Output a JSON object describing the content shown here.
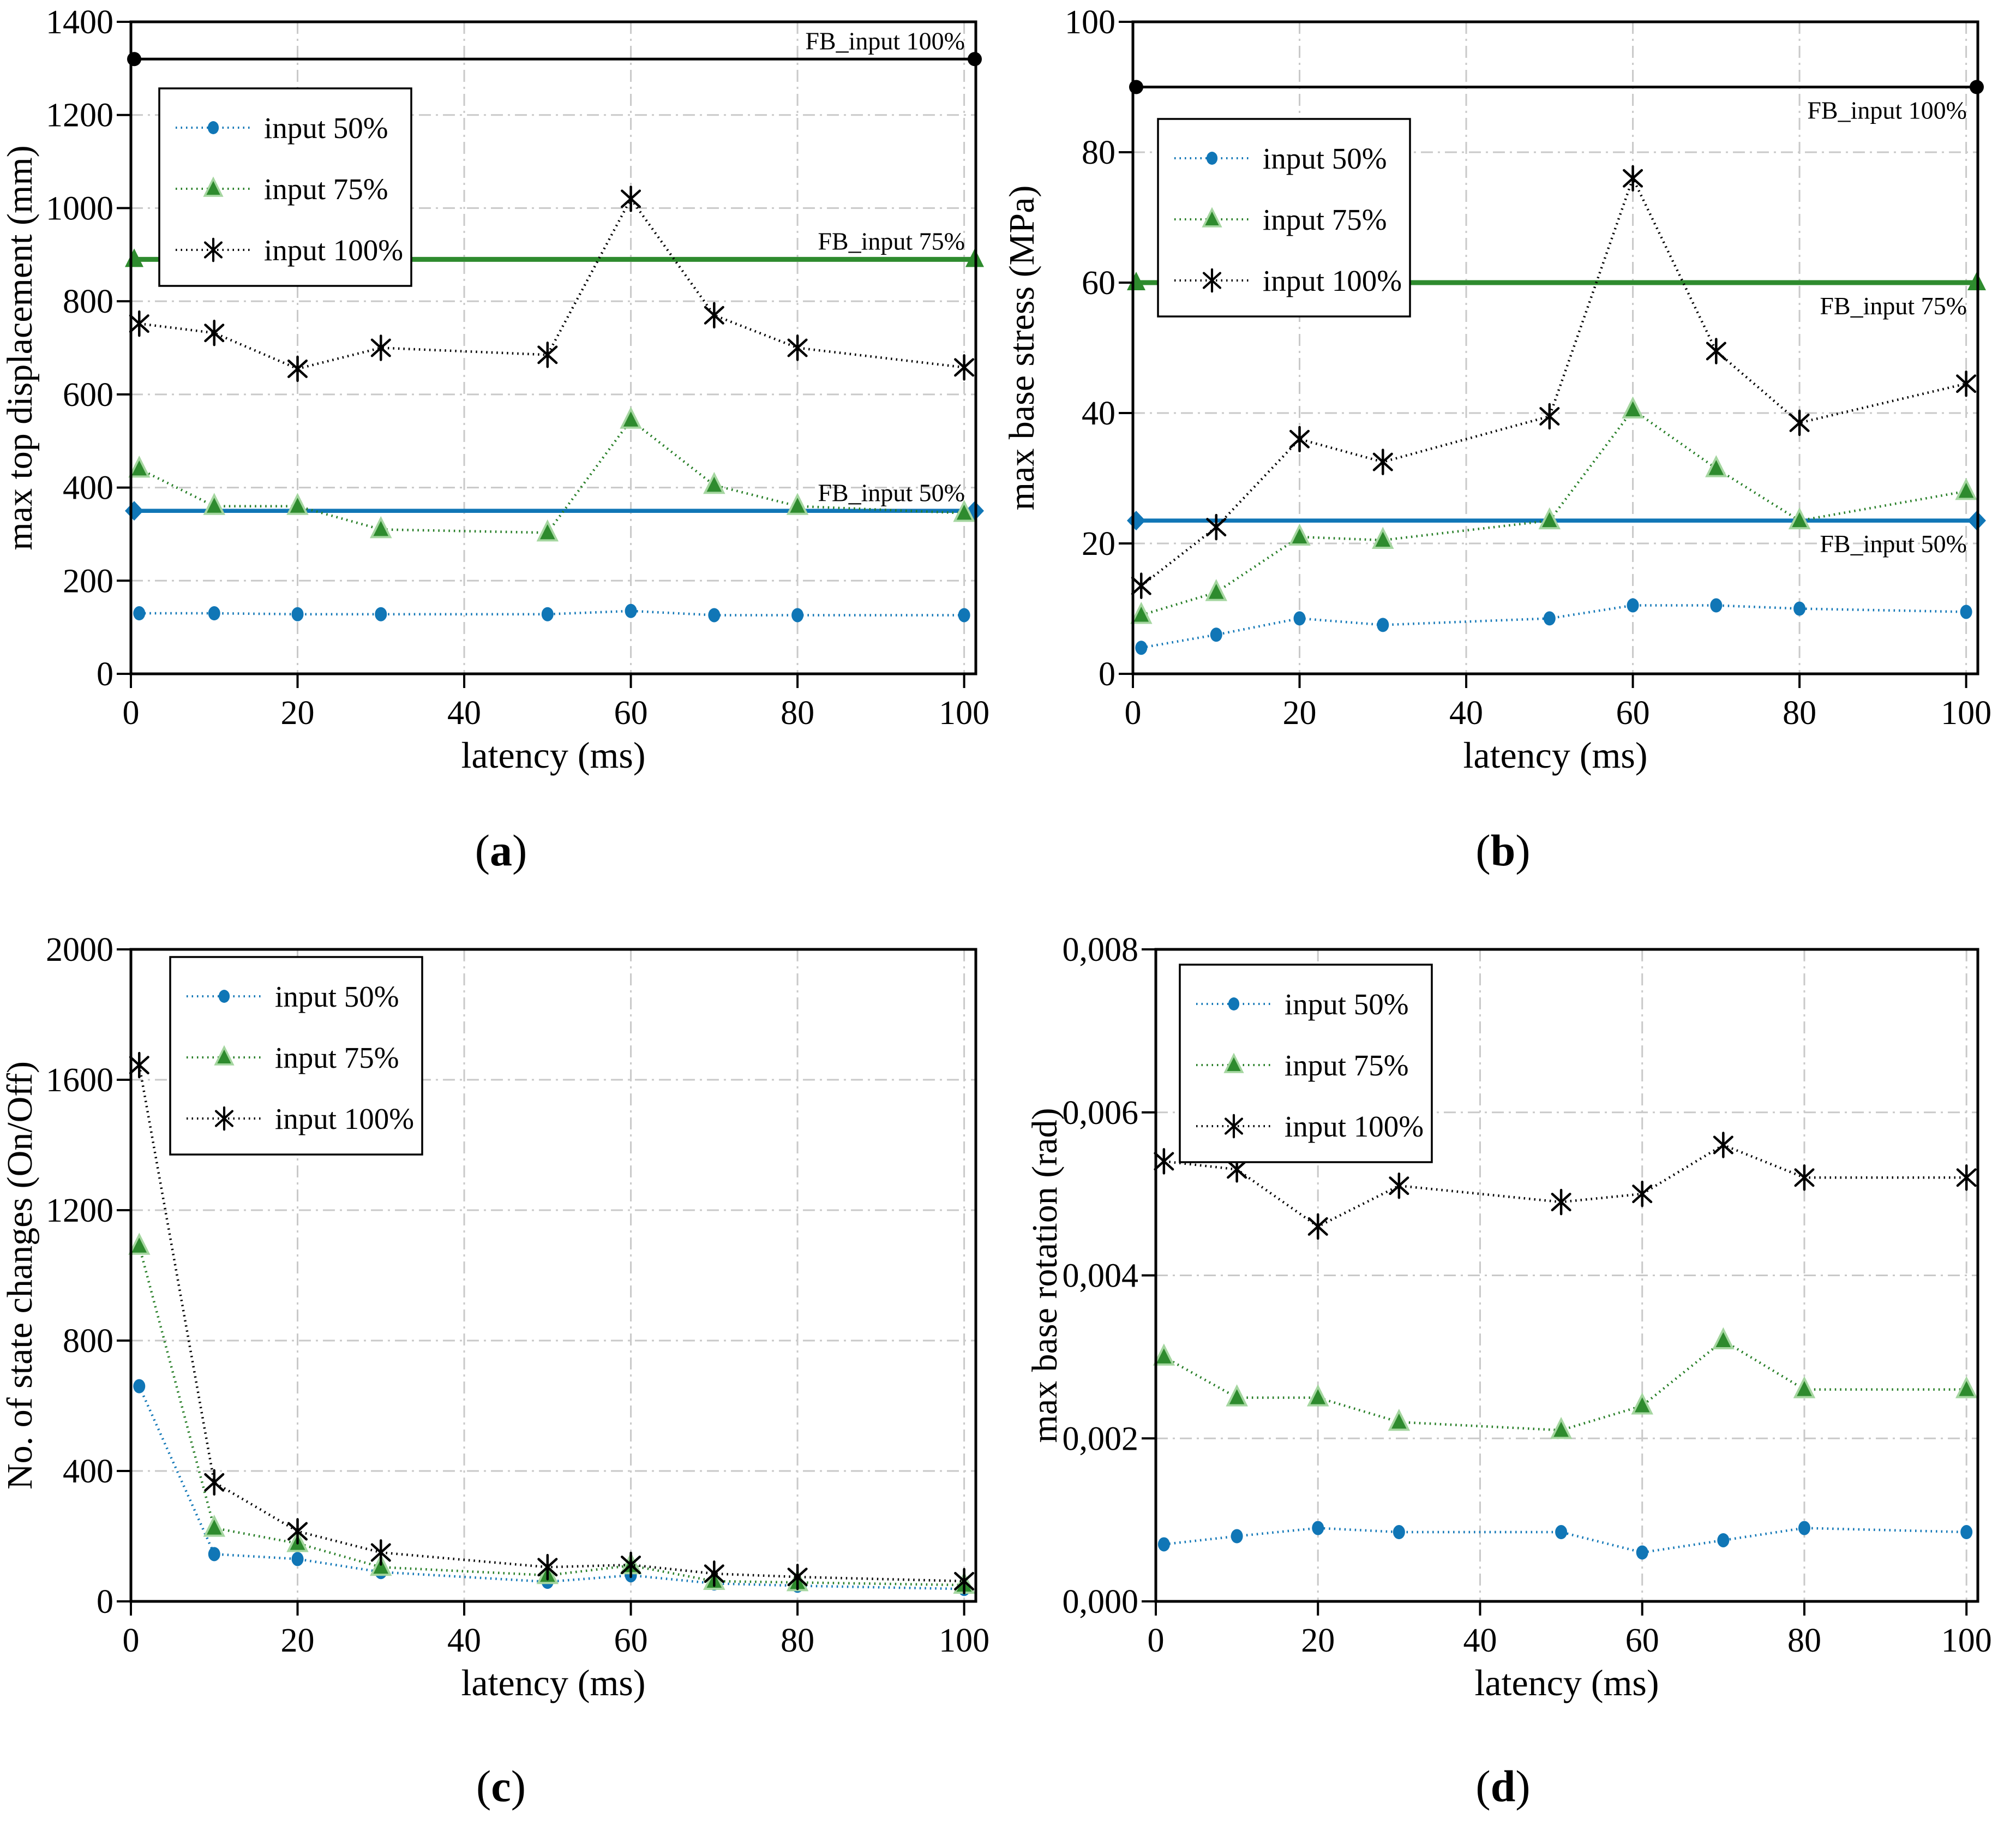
{
  "colors": {
    "blue": "#1076B6",
    "green_line": "#267E26",
    "green_fb": "#2E8B2E",
    "green_marker_fill": "#2E8B2E",
    "green_marker_edge": "#A5D6A0",
    "black": "#000000",
    "grid": "#C9C9C9",
    "background": "#FFFFFF"
  },
  "legend": {
    "items": [
      {
        "label": "input 50%",
        "marker": "circle",
        "color": "blue"
      },
      {
        "label": "input 75%",
        "marker": "triangle",
        "color": "green_line"
      },
      {
        "label": "input 100%",
        "marker": "asterisk",
        "color": "black"
      }
    ]
  },
  "figure": {
    "captions": [
      {
        "pre": "(",
        "letter": "a",
        "post": ")"
      },
      {
        "pre": "(",
        "letter": "b",
        "post": ")"
      },
      {
        "pre": "(",
        "letter": "c",
        "post": ")"
      },
      {
        "pre": "(",
        "letter": "d",
        "post": ")"
      }
    ]
  },
  "chart_data": [
    {
      "id": "a",
      "type": "line",
      "xlabel": "latency (ms)",
      "ylabel": "max top displacement (mm)",
      "x": [
        1,
        10,
        20,
        30,
        50,
        60,
        70,
        80,
        100
      ],
      "xlim": [
        0,
        101.4
      ],
      "xticks": [
        0,
        20,
        40,
        60,
        80,
        100
      ],
      "xtick_labels": [
        "0",
        "20",
        "40",
        "60",
        "80",
        "100"
      ],
      "ylim": [
        0,
        1400
      ],
      "yticks": [
        0,
        200,
        400,
        600,
        800,
        1000,
        1200,
        1400
      ],
      "ytick_labels": [
        "0",
        "200",
        "400",
        "600",
        "800",
        "1000",
        "1200",
        "1400"
      ],
      "series": [
        {
          "name": "input 50%",
          "marker": "circle",
          "color": "blue",
          "values": [
            130,
            130,
            128,
            128,
            128,
            135,
            126,
            126,
            126
          ]
        },
        {
          "name": "input 75%",
          "marker": "triangle",
          "color": "green_line",
          "values": [
            440,
            360,
            360,
            310,
            303,
            545,
            405,
            360,
            345
          ]
        },
        {
          "name": "input 100%",
          "marker": "asterisk",
          "color": "black",
          "values": [
            752,
            732,
            655,
            700,
            685,
            1020,
            770,
            700,
            658
          ]
        }
      ],
      "fb_lines": [
        {
          "label": "FB_input 100%",
          "value": 1320,
          "color": "black",
          "marker": "fbcircle",
          "label_side": "above"
        },
        {
          "label": "FB_input 75%",
          "value": 890,
          "color": "green_fb",
          "marker": "triangle",
          "label_side": "above"
        },
        {
          "label": "FB_input 50%",
          "value": 350,
          "color": "blue",
          "marker": "diamond",
          "label_side": "above"
        }
      ],
      "legend_offset": [
        52,
        122
      ],
      "left_margin": 240
    },
    {
      "id": "b",
      "type": "line",
      "xlabel": "latency (ms)",
      "ylabel": "max base stress (MPa)",
      "x": [
        1,
        10,
        20,
        30,
        50,
        60,
        70,
        80,
        100
      ],
      "xlim": [
        0,
        101.4
      ],
      "xticks": [
        0,
        20,
        40,
        60,
        80,
        100
      ],
      "xtick_labels": [
        "0",
        "20",
        "40",
        "60",
        "80",
        "100"
      ],
      "ylim": [
        0,
        100
      ],
      "yticks": [
        0,
        20,
        40,
        60,
        80,
        100
      ],
      "ytick_labels": [
        "0",
        "20",
        "40",
        "60",
        "80",
        "100"
      ],
      "series": [
        {
          "name": "input 50%",
          "marker": "circle",
          "color": "blue",
          "values": [
            4,
            6,
            8.5,
            7.5,
            8.5,
            10.5,
            10.5,
            10,
            9.5
          ]
        },
        {
          "name": "input 75%",
          "marker": "triangle",
          "color": "green_line",
          "values": [
            9,
            12.5,
            21,
            20.5,
            23.5,
            40.5,
            31.5,
            23.5,
            28
          ]
        },
        {
          "name": "input 100%",
          "marker": "asterisk",
          "color": "black",
          "values": [
            13.5,
            22.5,
            36,
            32.5,
            39.5,
            76,
            49.5,
            38.5,
            44.5
          ]
        }
      ],
      "fb_lines": [
        {
          "label": "FB_input 100%",
          "value": 90,
          "color": "black",
          "marker": "fbcircle",
          "label_side": "below"
        },
        {
          "label": "FB_input 75%",
          "value": 60,
          "color": "green_fb",
          "marker": "triangle",
          "label_side": "below"
        },
        {
          "label": "FB_input 50%",
          "value": 23.5,
          "color": "blue",
          "marker": "diamond",
          "label_side": "below"
        }
      ],
      "legend_offset": [
        46,
        178
      ],
      "left_margin": 240
    },
    {
      "id": "c",
      "type": "line",
      "xlabel": "latency (ms)",
      "ylabel": "No. of state changes (On/Off)",
      "x": [
        1,
        10,
        20,
        30,
        50,
        60,
        70,
        80,
        100
      ],
      "xlim": [
        0,
        101.4
      ],
      "xticks": [
        0,
        20,
        40,
        60,
        80,
        100
      ],
      "xtick_labels": [
        "0",
        "20",
        "40",
        "60",
        "80",
        "100"
      ],
      "ylim": [
        0,
        2000
      ],
      "yticks": [
        0,
        400,
        800,
        1200,
        1600,
        2000
      ],
      "ytick_labels": [
        "0",
        "400",
        "800",
        "1200",
        "1600",
        "2000"
      ],
      "series": [
        {
          "name": "input 50%",
          "marker": "circle",
          "color": "blue",
          "values": [
            660,
            145,
            130,
            90,
            60,
            80,
            55,
            48,
            38
          ]
        },
        {
          "name": "input 75%",
          "marker": "triangle",
          "color": "green_line",
          "values": [
            1090,
            225,
            178,
            105,
            80,
            110,
            62,
            58,
            50
          ]
        },
        {
          "name": "input 100%",
          "marker": "asterisk",
          "color": "black",
          "values": [
            1645,
            365,
            215,
            150,
            105,
            112,
            85,
            75,
            62
          ]
        }
      ],
      "fb_lines": [],
      "legend_offset": [
        72,
        14
      ],
      "left_margin": 240
    },
    {
      "id": "d",
      "type": "line",
      "xlabel": "latency (ms)",
      "ylabel": "max base rotation (rad)",
      "x": [
        1,
        10,
        20,
        30,
        50,
        60,
        70,
        80,
        100
      ],
      "xlim": [
        0,
        101.4
      ],
      "xticks": [
        0,
        20,
        40,
        60,
        80,
        100
      ],
      "xtick_labels": [
        "0",
        "20",
        "40",
        "60",
        "80",
        "100"
      ],
      "ylim": [
        0,
        0.008
      ],
      "yticks": [
        0,
        0.002,
        0.004,
        0.006,
        0.008
      ],
      "ytick_labels": [
        "0,000",
        "0,002",
        "0,004",
        "0,006",
        "0,008"
      ],
      "series": [
        {
          "name": "input 50%",
          "marker": "circle",
          "color": "blue",
          "values": [
            0.0007,
            0.0008,
            0.0009,
            0.00085,
            0.00085,
            0.0006,
            0.00075,
            0.0009,
            0.00085
          ]
        },
        {
          "name": "input 75%",
          "marker": "triangle",
          "color": "green_line",
          "values": [
            0.003,
            0.0025,
            0.0025,
            0.0022,
            0.0021,
            0.0024,
            0.0032,
            0.0026,
            0.0026
          ]
        },
        {
          "name": "input 100%",
          "marker": "asterisk",
          "color": "black",
          "values": [
            0.0054,
            0.0053,
            0.0046,
            0.0051,
            0.0049,
            0.005,
            0.0056,
            0.0052,
            0.0052
          ]
        }
      ],
      "fb_lines": [],
      "legend_offset": [
        44,
        28
      ],
      "left_margin": 282
    }
  ]
}
